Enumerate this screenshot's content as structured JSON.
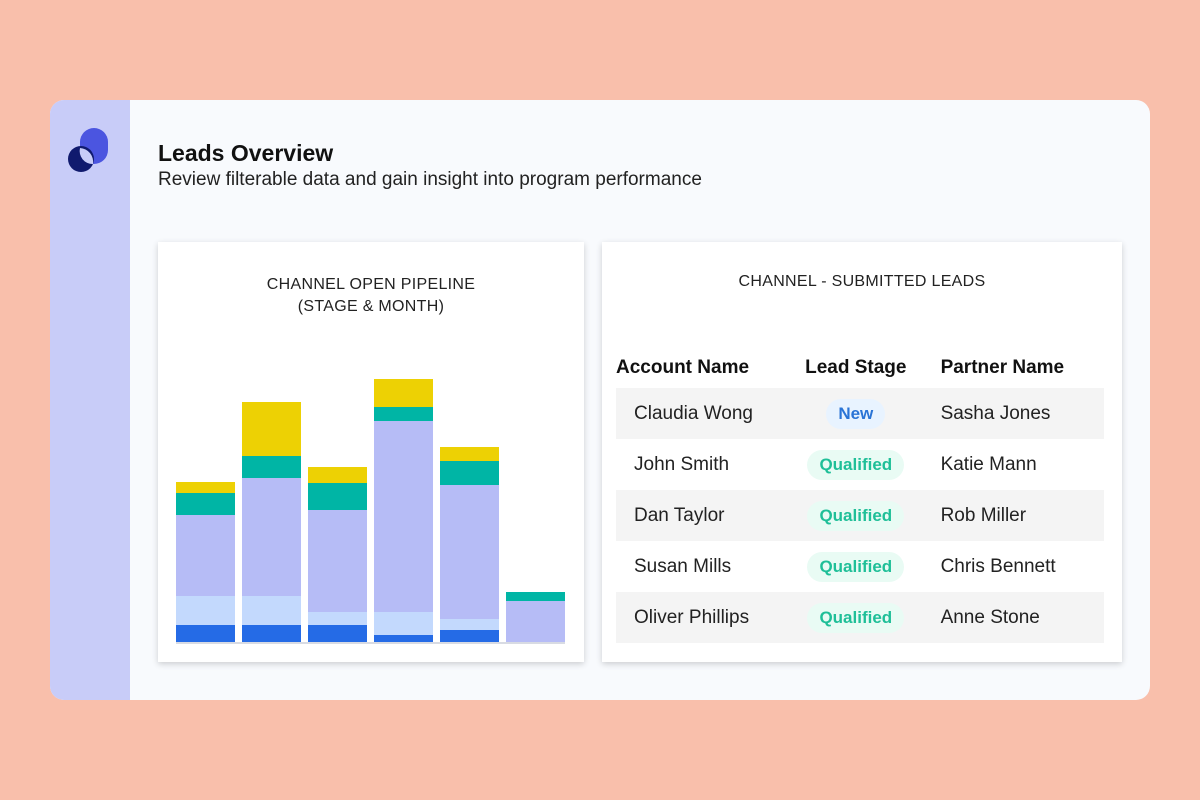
{
  "header": {
    "title": "Leads Overview",
    "subtitle": "Review filterable data and gain insight into program performance"
  },
  "colors": {
    "background": "#f9bfab",
    "sidebar": "#c8ccf8",
    "stage_colors": [
      "#256be6",
      "#c3d9fd",
      "#b6bcf6",
      "#00b5a5",
      "#edd104"
    ],
    "badge_new": "#2a74d6",
    "badge_qualified": "#1fbf98"
  },
  "chart_data": {
    "type": "bar",
    "stacked": true,
    "title_line1": "CHANNEL OPEN PIPELINE",
    "title_line2": "(STAGE & MONTH)",
    "categories": [
      "",
      "",
      "",
      "",
      "",
      ""
    ],
    "grid": false,
    "legend": "none",
    "series": [
      {
        "values": [
          17,
          17,
          17,
          7,
          12,
          0
        ]
      },
      {
        "values": [
          29,
          29,
          13,
          23,
          11,
          0
        ]
      },
      {
        "values": [
          81,
          118,
          102,
          191,
          134,
          41
        ]
      },
      {
        "values": [
          22,
          22,
          27,
          14,
          24,
          9
        ]
      },
      {
        "values": [
          11,
          54,
          16,
          28,
          14,
          0
        ]
      }
    ],
    "ylim": [
      0,
      270
    ]
  },
  "leads": {
    "title": "CHANNEL - SUBMITTED LEADS",
    "columns": [
      "Account Name",
      "Lead Stage",
      "Partner Name"
    ],
    "rows": [
      {
        "account": "Claudia Wong",
        "stage": "New",
        "partner": "Sasha Jones"
      },
      {
        "account": "John Smith",
        "stage": "Qualified",
        "partner": "Katie Mann"
      },
      {
        "account": "Dan Taylor",
        "stage": "Qualified",
        "partner": "Rob Miller"
      },
      {
        "account": "Susan Mills",
        "stage": "Qualified",
        "partner": "Chris Bennett"
      },
      {
        "account": "Oliver Phillips",
        "stage": "Qualified",
        "partner": "Anne Stone"
      }
    ]
  }
}
